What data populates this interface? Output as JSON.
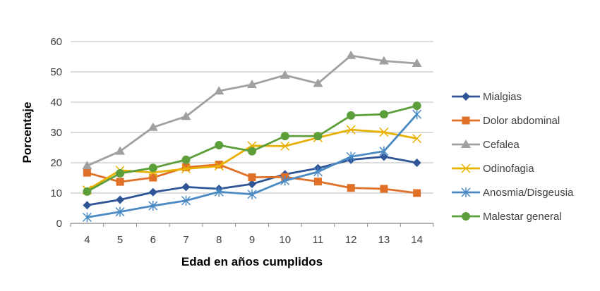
{
  "chart_data": {
    "type": "line",
    "title": "",
    "xlabel": "Edad en años cumplidos",
    "ylabel": "Porcentaje",
    "ylim": [
      0,
      60
    ],
    "yticks": [
      0,
      10,
      20,
      30,
      40,
      50,
      60
    ],
    "grid": true,
    "legend": "right",
    "categories": [
      "4",
      "5",
      "6",
      "7",
      "8",
      "9",
      "10",
      "11",
      "12",
      "13",
      "14"
    ],
    "series": [
      {
        "name": "Mialgias",
        "color": "#2F5597",
        "marker": "diamond",
        "values": [
          6,
          7.8,
          10.3,
          12,
          11.4,
          13,
          16.2,
          18.2,
          21,
          22,
          20
        ]
      },
      {
        "name": "Dolor abdominal",
        "color": "#E07028",
        "marker": "square",
        "values": [
          16.7,
          13.7,
          15.1,
          18.5,
          19.4,
          15.2,
          15.3,
          13.8,
          11.7,
          11.4,
          10
        ]
      },
      {
        "name": "Cefalea",
        "color": "#A0A0A0",
        "marker": "triangle",
        "values": [
          19,
          23.8,
          31.7,
          35.3,
          43.7,
          45.8,
          48.9,
          46.2,
          55.4,
          53.6,
          52.8
        ]
      },
      {
        "name": "Odinofagia",
        "color": "#E8B000",
        "marker": "x",
        "values": [
          11,
          17.5,
          16.8,
          18,
          18.9,
          25.6,
          25.5,
          28.3,
          30.9,
          30.1,
          28
        ]
      },
      {
        "name": "Anosmia/Disgeusia",
        "color": "#4A8AC4",
        "marker": "star",
        "values": [
          2,
          3.8,
          5.8,
          7.5,
          10.4,
          9.6,
          14.1,
          17,
          22,
          23.8,
          36
        ]
      },
      {
        "name": "Malestar general",
        "color": "#5C9E3A",
        "marker": "circle",
        "values": [
          10.5,
          16.5,
          18.3,
          21,
          25.8,
          23.8,
          28.8,
          28.8,
          35.6,
          36,
          38.8
        ]
      }
    ]
  }
}
